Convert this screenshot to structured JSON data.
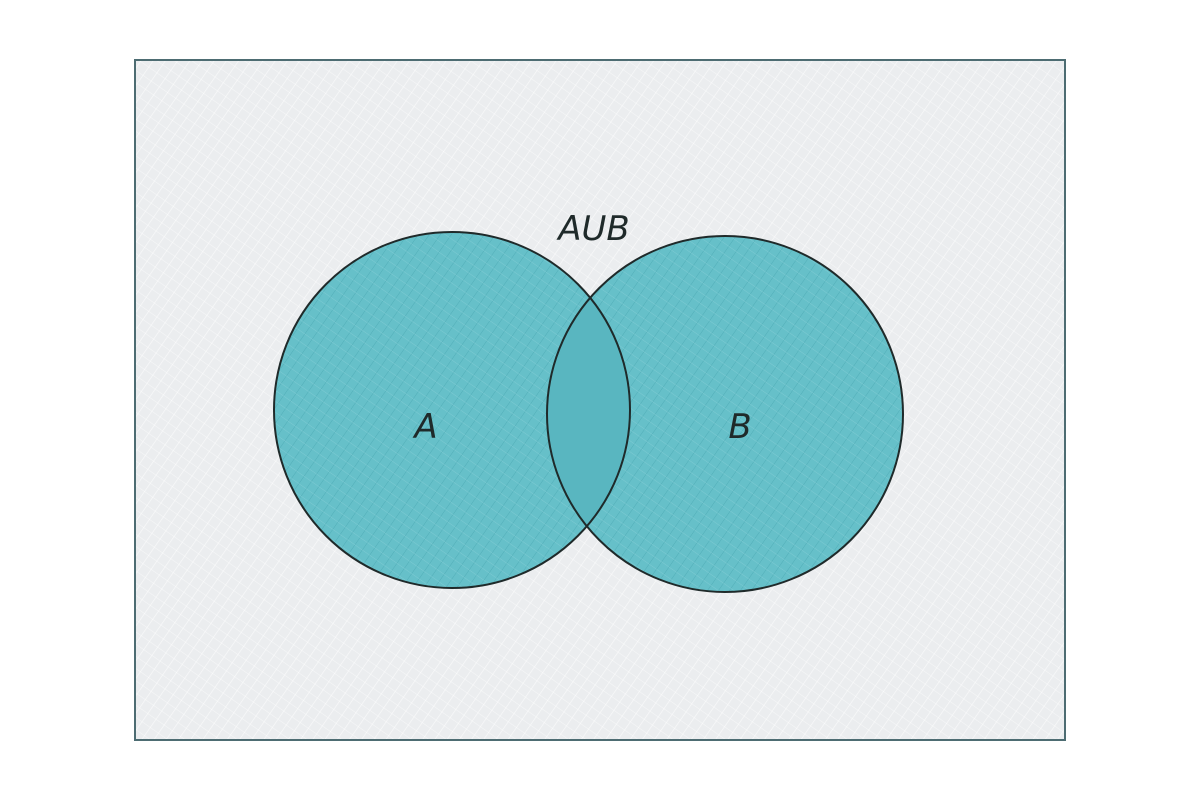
{
  "diagram": {
    "type": "venn-diagram",
    "union_label": "AUB",
    "sets": [
      {
        "id": "set-a",
        "label": "A"
      },
      {
        "id": "set-b",
        "label": "B"
      }
    ],
    "colors": {
      "universe_fill": "#ebedef",
      "universe_border": "#4d6c72",
      "set_fill": "#66c0c9",
      "intersection_fill": "#59b6c0",
      "outline": "#1f2a2a",
      "text": "#1f2a2a"
    }
  }
}
